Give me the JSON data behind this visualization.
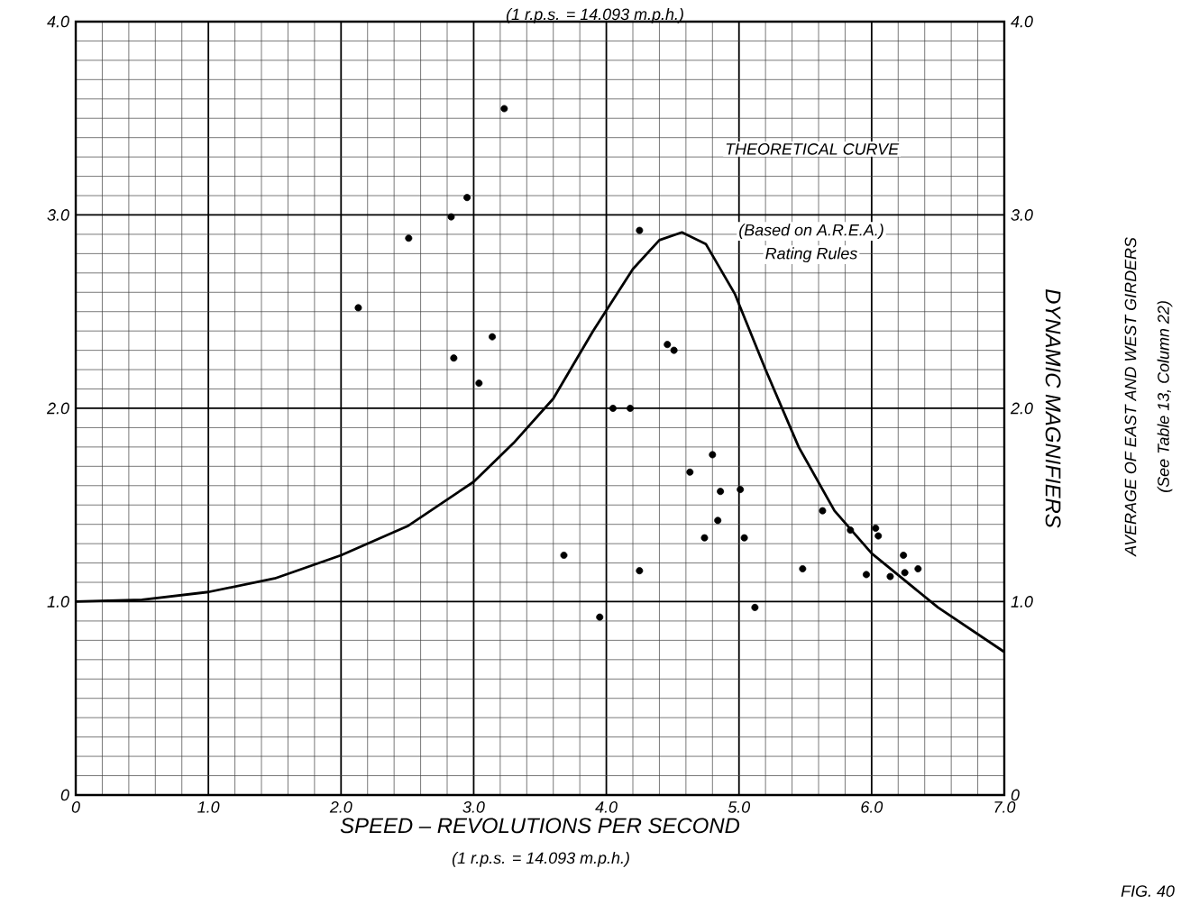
{
  "chart_data": {
    "type": "scatter",
    "subtitle": "(1 r.p.s. = 14.093 m.p.h.)",
    "xlabel": "SPEED – REVOLUTIONS PER SECOND",
    "y2label": "DYNAMIC MAGNIFIERS",
    "annotations": [
      "(1 r.p.s. = 14.093 m.p.h.)",
      "AVERAGE OF EAST AND WEST GIRDERS",
      "(See Table 13, Column 22)",
      "(Based on A.R.E.A.)",
      "Rating Rules",
      "FIG. 40"
    ],
    "series": [
      {
        "color": "#000000",
        "marker": "circle",
        "x": [
          3.23,
          2.95,
          2.83,
          2.51,
          2.13,
          3.14,
          2.85,
          3.04,
          4.25,
          4.46,
          4.51,
          4.05,
          4.18,
          3.68,
          4.8,
          4.63,
          4.86,
          5.01,
          4.84,
          4.74,
          5.04,
          4.25,
          3.95,
          5.12,
          5.48,
          5.63,
          5.84,
          6.03,
          6.05,
          5.96,
          6.14,
          6.24,
          6.25,
          6.35
        ],
        "values": [
          3.55,
          3.09,
          2.99,
          2.88,
          2.52,
          2.37,
          2.26,
          2.13,
          2.92,
          2.33,
          2.3,
          2.0,
          2.0,
          1.24,
          1.76,
          1.67,
          1.57,
          1.58,
          1.42,
          1.33,
          1.33,
          1.16,
          0.92,
          0.97,
          1.17,
          1.47,
          1.37,
          1.38,
          1.34,
          1.14,
          1.13,
          1.24,
          1.15,
          1.17
        ]
      },
      {
        "type": "line",
        "name": "THEORETICAL CURVE",
        "color": "#000000",
        "marker": "none",
        "line_style": "solid",
        "x": [
          0,
          0.5,
          1.0,
          1.5,
          2.0,
          2.5,
          3.0,
          3.3,
          3.6,
          3.9,
          4.2,
          4.4,
          4.57,
          4.75,
          4.97,
          5.2,
          5.45,
          5.72,
          6.0,
          6.5,
          7.0
        ],
        "values": [
          1.0,
          1.01,
          1.05,
          1.12,
          1.24,
          1.39,
          1.62,
          1.82,
          2.05,
          2.4,
          2.72,
          2.87,
          2.91,
          2.85,
          2.59,
          2.2,
          1.8,
          1.47,
          1.25,
          0.97,
          0.74
        ]
      }
    ],
    "xlim": [
      0,
      7
    ],
    "xticks": [
      {
        "value": 0,
        "label": "0"
      },
      {
        "value": 1,
        "label": "1.0"
      },
      {
        "value": 2,
        "label": "2.0"
      },
      {
        "value": 3,
        "label": "3.0"
      },
      {
        "value": 4,
        "label": "4.0"
      },
      {
        "value": 5,
        "label": "5.0"
      },
      {
        "value": 6,
        "label": "6.0"
      },
      {
        "value": 7,
        "label": "7.0"
      }
    ],
    "ylim": [
      0,
      4
    ],
    "yticks": [
      0,
      {
        "value": 1,
        "label": "1.0"
      },
      {
        "value": 2,
        "label": "2.0"
      },
      {
        "value": 3,
        "label": "3.0"
      },
      {
        "value": 4,
        "label": "4.0"
      }
    ],
    "y2lim": [
      0,
      4
    ],
    "y2ticks": [
      0,
      {
        "value": 1,
        "label": "1.0"
      },
      {
        "value": 2,
        "label": "2.0"
      },
      {
        "value": 3,
        "label": "3.0"
      },
      {
        "value": 4,
        "label": "4.0"
      }
    ],
    "grid": true
  }
}
